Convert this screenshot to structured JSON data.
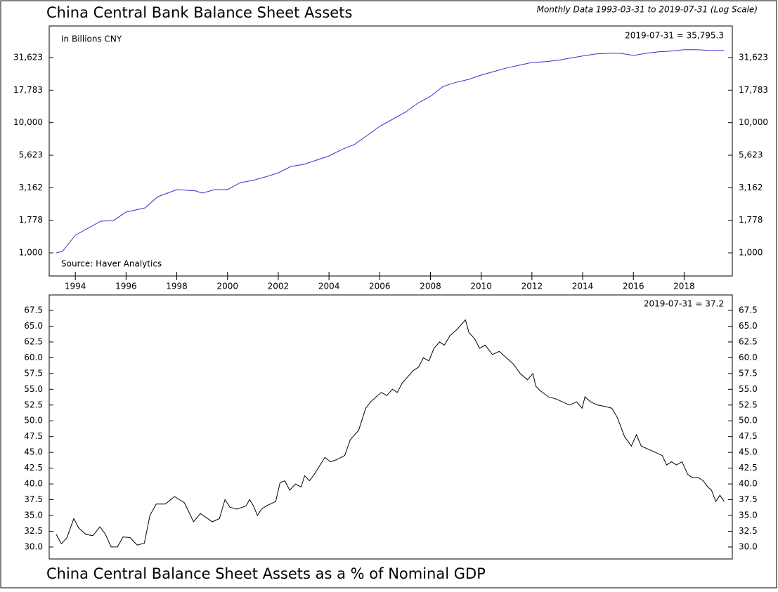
{
  "chart_data": [
    {
      "type": "line",
      "title": "China Central Bank Balance Sheet Assets",
      "subtitle": "Monthly Data 1993-03-31 to 2019-07-31 (Log Scale)",
      "unit_label": "In Billions CNY",
      "last_value_label": "2019-07-31 = 35,795.3",
      "source": "Source: Haver Analytics",
      "log_y": true,
      "xlim": [
        1992.97,
        2019.9
      ],
      "ylim": [
        664,
        55300
      ],
      "xticks": [
        1994,
        1996,
        1998,
        2000,
        2002,
        2004,
        2006,
        2008,
        2010,
        2012,
        2014,
        2016,
        2018
      ],
      "yticks": [
        {
          "value": 1000,
          "label": "1,000"
        },
        {
          "value": 1778,
          "label": "1,778"
        },
        {
          "value": 3162,
          "label": "3,162"
        },
        {
          "value": 5623,
          "label": "5,623"
        },
        {
          "value": 10000,
          "label": "10,000"
        },
        {
          "value": 17783,
          "label": "17,783"
        },
        {
          "value": 31623,
          "label": "31,623"
        }
      ],
      "series": [
        {
          "name": "Assets",
          "color": "#3333cc",
          "x": [
            1993.25,
            1993.5,
            1994.0,
            1995.0,
            1995.5,
            1996.0,
            1996.75,
            1997.25,
            1998.0,
            1998.75,
            1999.0,
            1999.5,
            2000.0,
            2000.5,
            2001.0,
            2001.5,
            2002.0,
            2002.5,
            2003.0,
            2003.5,
            2004.0,
            2004.5,
            2005.0,
            2005.5,
            2006.0,
            2006.5,
            2007.0,
            2007.5,
            2008.0,
            2008.5,
            2009.0,
            2009.5,
            2010.0,
            2010.5,
            2011.0,
            2011.5,
            2012.0,
            2012.5,
            2013.0,
            2013.5,
            2014.0,
            2014.5,
            2015.0,
            2015.5,
            2016.0,
            2016.5,
            2017.0,
            2017.5,
            2018.0,
            2018.5,
            2019.0,
            2019.58
          ],
          "values": [
            1000,
            1030,
            1365,
            1750,
            1770,
            2056,
            2215,
            2700,
            3060,
            2990,
            2875,
            3060,
            3060,
            3460,
            3600,
            3830,
            4120,
            4610,
            4780,
            5150,
            5550,
            6220,
            6790,
            7960,
            9370,
            10600,
            12000,
            14100,
            15950,
            18970,
            20400,
            21500,
            23200,
            24700,
            26300,
            27600,
            29000,
            29400,
            30100,
            31300,
            32500,
            33700,
            34100,
            34100,
            32800,
            34100,
            35000,
            35500,
            36400,
            36400,
            35900,
            35795.3
          ]
        }
      ]
    },
    {
      "type": "line",
      "title": "China Central Balance Sheet Assets as a % of Nominal GDP",
      "last_value_label": "2019-07-31 = 37.2",
      "xlim": [
        1992.97,
        2019.9
      ],
      "ylim": [
        28.1,
        69.95
      ],
      "yticks": [
        {
          "value": 30,
          "label": "30.0"
        },
        32.5,
        {
          "value": 35,
          "label": "35.0"
        },
        37.5,
        {
          "value": 40,
          "label": "40.0"
        },
        42.5,
        {
          "value": 45,
          "label": "45.0"
        },
        47.5,
        {
          "value": 50,
          "label": "50.0"
        },
        52.5,
        {
          "value": 55,
          "label": "55.0"
        },
        57.5,
        {
          "value": 60,
          "label": "60.0"
        },
        62.5,
        {
          "value": 65,
          "label": "65.0"
        },
        67.5
      ],
      "series": [
        {
          "name": "% of GDP",
          "color": "#000000",
          "x": [
            1993.25,
            1993.45,
            1993.67,
            1993.94,
            1994.14,
            1994.42,
            1994.69,
            1994.97,
            1995.19,
            1995.41,
            1995.66,
            1995.88,
            1996.16,
            1996.44,
            1996.72,
            1996.94,
            1997.19,
            1997.55,
            1997.91,
            1998.3,
            1998.66,
            1998.93,
            1999.4,
            1999.68,
            1999.9,
            2000.1,
            2000.37,
            2000.73,
            2000.87,
            2001.01,
            2001.18,
            2001.34,
            2001.57,
            2001.9,
            2002.07,
            2002.26,
            2002.45,
            2002.68,
            2002.9,
            2003.04,
            2003.23,
            2003.42,
            2003.65,
            2003.84,
            2004.06,
            2004.28,
            2004.62,
            2004.84,
            2005.17,
            2005.45,
            2005.64,
            2005.86,
            2006.06,
            2006.28,
            2006.5,
            2006.69,
            2006.89,
            2007.11,
            2007.33,
            2007.53,
            2007.72,
            2007.94,
            2008.14,
            2008.36,
            2008.55,
            2008.77,
            2009.05,
            2009.38,
            2009.52,
            2009.74,
            2009.94,
            2010.16,
            2010.44,
            2010.71,
            2010.99,
            2011.27,
            2011.54,
            2011.82,
            2012.04,
            2012.15,
            2012.32,
            2012.65,
            2012.93,
            2013.21,
            2013.48,
            2013.76,
            2013.98,
            2014.09,
            2014.32,
            2014.59,
            2014.87,
            2015.15,
            2015.37,
            2015.65,
            2015.92,
            2016.12,
            2016.31,
            2016.59,
            2016.87,
            2017.14,
            2017.31,
            2017.5,
            2017.7,
            2017.92,
            2018.14,
            2018.33,
            2018.56,
            2018.75,
            2018.94,
            2019.08,
            2019.25,
            2019.41,
            2019.58
          ],
          "values": [
            32.0,
            30.5,
            31.5,
            34.5,
            33.0,
            32.0,
            31.8,
            33.2,
            32.0,
            30.0,
            30.0,
            31.6,
            31.5,
            30.3,
            30.6,
            35.0,
            36.8,
            36.8,
            38.0,
            37.0,
            34.0,
            35.3,
            34.0,
            34.5,
            37.5,
            36.3,
            36.0,
            36.5,
            37.5,
            36.6,
            35.0,
            36.0,
            36.6,
            37.2,
            40.2,
            40.5,
            39.0,
            40.0,
            39.5,
            41.3,
            40.5,
            41.5,
            43.0,
            44.2,
            43.5,
            43.8,
            44.5,
            47.0,
            48.5,
            52.0,
            53.0,
            53.8,
            54.5,
            54.0,
            55.0,
            54.5,
            56.0,
            57.0,
            58.0,
            58.5,
            60.0,
            59.5,
            61.5,
            62.5,
            62.0,
            63.5,
            64.5,
            66.0,
            64.0,
            63.0,
            61.5,
            62.0,
            60.5,
            61.0,
            60.0,
            59.0,
            57.5,
            56.5,
            57.5,
            55.5,
            54.8,
            53.8,
            53.5,
            53.0,
            52.5,
            53.0,
            52.0,
            53.8,
            53.0,
            52.5,
            52.3,
            52.0,
            50.5,
            47.5,
            46.0,
            47.8,
            46.0,
            45.5,
            45.0,
            44.5,
            43.0,
            43.5,
            43.0,
            43.5,
            41.5,
            41.0,
            41.0,
            40.5,
            39.5,
            39.0,
            37.2,
            38.2,
            37.2
          ]
        }
      ]
    }
  ]
}
